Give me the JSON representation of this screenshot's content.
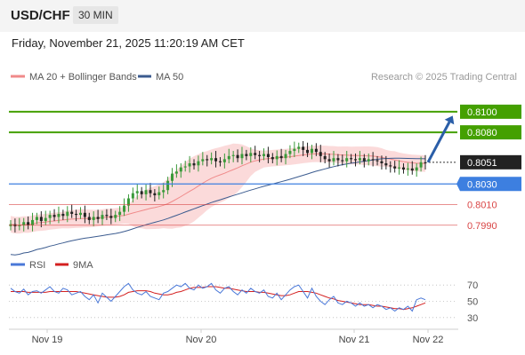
{
  "header": {
    "symbol": "USD/CHF",
    "timeframe": "30 MIN",
    "datetime": "Friday, November 21, 2025 11:20:19 AM CET"
  },
  "legend": {
    "ma20": "MA 20 + Bollinger Bands",
    "ma50": "MA 50",
    "credit": "Research © 2025 Trading Central",
    "rsi": "RSI",
    "ma9": "9MA"
  },
  "colors": {
    "candle_up": "#3a9a3a",
    "candle_down": "#222222",
    "bollinger_fill": "#f9c6c6",
    "ma20": "#f08a8a",
    "ma50": "#3b5b8f",
    "resistance": "#44a000",
    "pivot": "#3d7fe0",
    "support": "#d94545",
    "rsi": "#4a78d8",
    "ma9": "#d42020",
    "arrow": "#2a5ea8",
    "last_price_bg": "#222222"
  },
  "chart_data": [
    {
      "type": "candlestick",
      "series_name": "USD/CHF",
      "x_ticks": [
        "Nov 19",
        "Nov 20",
        "Nov 21",
        "Nov 22"
      ],
      "ylim": [
        0.797,
        0.813
      ],
      "close": [
        0.7991,
        0.7989,
        0.799,
        0.7993,
        0.799,
        0.7995,
        0.7998,
        0.7994,
        0.7997,
        0.8,
        0.7998,
        0.8001,
        0.7999,
        0.8003,
        0.8001,
        0.8,
        0.8002,
        0.7998,
        0.7995,
        0.7998,
        0.7996,
        0.8,
        0.7999,
        0.7997,
        0.8,
        0.8003,
        0.8009,
        0.8016,
        0.8021,
        0.8023,
        0.802,
        0.8024,
        0.8021,
        0.8019,
        0.8022,
        0.8024,
        0.8033,
        0.804,
        0.8042,
        0.8046,
        0.8047,
        0.805,
        0.8048,
        0.8052,
        0.8054,
        0.8053,
        0.8055,
        0.8052,
        0.8051,
        0.8054,
        0.8057,
        0.8058,
        0.8055,
        0.8059,
        0.8057,
        0.806,
        0.8058,
        0.8057,
        0.8059,
        0.8056,
        0.8054,
        0.8057,
        0.8055,
        0.8059,
        0.8062,
        0.8064,
        0.8066,
        0.8063,
        0.806,
        0.8064,
        0.8061,
        0.8057,
        0.8054,
        0.8052,
        0.8055,
        0.8053,
        0.8052,
        0.8055,
        0.8054,
        0.8053,
        0.8055,
        0.8052,
        0.8054,
        0.8053,
        0.8052,
        0.805,
        0.8048,
        0.8047,
        0.8045,
        0.8046,
        0.8044,
        0.8045,
        0.8043,
        0.8046,
        0.8051,
        0.805
      ],
      "resistances": [
        0.81,
        0.808
      ],
      "last_price": 0.8051,
      "pivot": 0.803,
      "supports": [
        0.801,
        0.799
      ],
      "arrow_target": 0.809
    },
    {
      "type": "line",
      "title": "RSI",
      "series": [
        {
          "name": "RSI"
        },
        {
          "name": "9MA"
        }
      ],
      "y_ticks": [
        70,
        50,
        30
      ],
      "ylim": [
        20,
        80
      ],
      "rsi": [
        66,
        62,
        60,
        65,
        58,
        62,
        63,
        60,
        64,
        68,
        62,
        60,
        66,
        64,
        58,
        60,
        62,
        56,
        52,
        58,
        48,
        60,
        55,
        50,
        56,
        62,
        68,
        72,
        64,
        60,
        58,
        62,
        56,
        54,
        52,
        60,
        62,
        66,
        70,
        68,
        72,
        66,
        64,
        70,
        66,
        68,
        72,
        64,
        60,
        66,
        68,
        62,
        58,
        64,
        60,
        66,
        62,
        60,
        64,
        56,
        54,
        60,
        52,
        58,
        64,
        68,
        70,
        62,
        54,
        66,
        56,
        50,
        46,
        52,
        56,
        48,
        46,
        50,
        48,
        44,
        48,
        44,
        46,
        42,
        46,
        44,
        40,
        42,
        38,
        42,
        40,
        44,
        38,
        52,
        54,
        52
      ],
      "ma9": [
        62,
        62,
        62,
        62,
        61,
        61,
        61,
        61,
        61,
        62,
        62,
        62,
        62,
        62,
        62,
        62,
        61,
        60,
        59,
        58,
        57,
        56,
        55,
        55,
        55,
        56,
        58,
        61,
        62,
        63,
        63,
        63,
        62,
        60,
        59,
        58,
        58,
        59,
        61,
        62,
        64,
        66,
        67,
        67,
        67,
        68,
        68,
        68,
        67,
        66,
        66,
        65,
        64,
        63,
        62,
        62,
        62,
        61,
        61,
        60,
        59,
        58,
        57,
        57,
        58,
        60,
        62,
        62,
        62,
        61,
        60,
        58,
        56,
        54,
        53,
        51,
        50,
        49,
        48,
        47,
        46,
        46,
        46,
        45,
        44,
        44,
        43,
        42,
        41,
        41,
        40,
        41,
        42,
        44,
        46,
        48
      ]
    }
  ]
}
